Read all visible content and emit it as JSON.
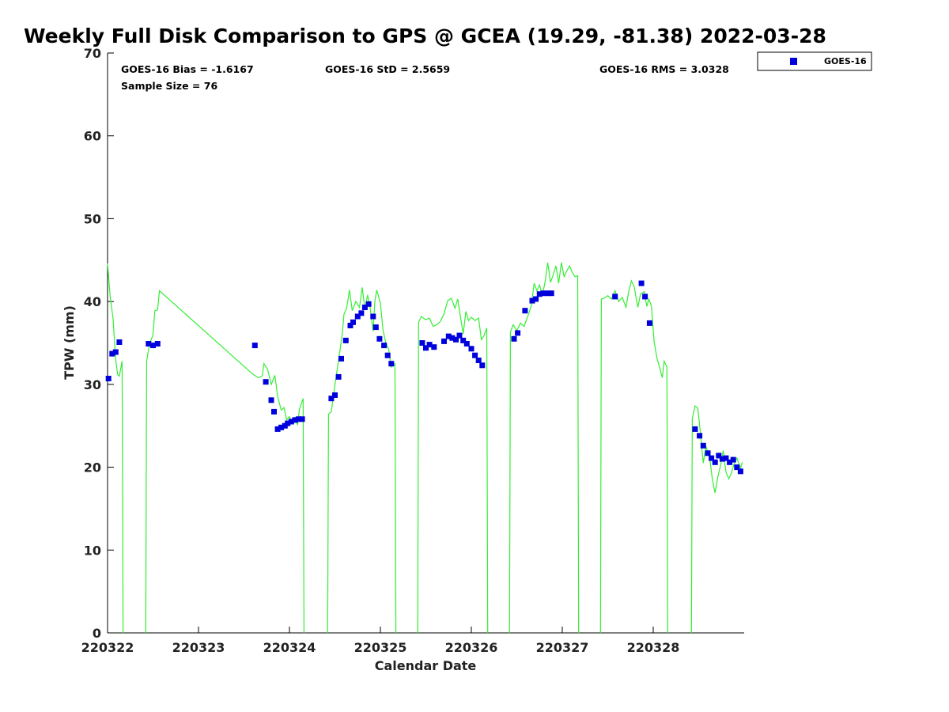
{
  "chart_data": {
    "type": "scatter",
    "title": "Weekly Full Disk Comparison to GPS @ GCEA (19.29, -81.38) 2022-03-28",
    "xlabel": "Calendar Date",
    "ylabel": "TPW (mm)",
    "xlim": [
      0,
      7
    ],
    "ylim": [
      0,
      70
    ],
    "x_unit": "days since 220322",
    "x_ticks": [
      0,
      1,
      2,
      3,
      4,
      5,
      6
    ],
    "x_tick_labels": [
      "220322",
      "220323",
      "220324",
      "220325",
      "220326",
      "220327",
      "220328"
    ],
    "y_ticks": [
      0,
      10,
      20,
      30,
      40,
      50,
      60,
      70
    ],
    "y_tick_labels": [
      "0",
      "10",
      "20",
      "30",
      "40",
      "50",
      "60",
      "70"
    ],
    "stats": {
      "bias": "GOES-16 Bias = -1.6167",
      "std": "GOES-16 StD = 2.5659",
      "rms": "GOES-16 RMS = 3.0328",
      "sample": "Sample Size = 76"
    },
    "legend": {
      "position": "top-right",
      "label": "GOES-16"
    },
    "colors": {
      "goes": "#0000dd",
      "gps": "#33ee33"
    },
    "series": [
      {
        "name": "GOES-16",
        "kind": "markers",
        "points": [
          [
            0.01,
            30.7
          ],
          [
            0.05,
            33.7
          ],
          [
            0.09,
            33.9
          ],
          [
            0.13,
            35.1
          ],
          [
            0.45,
            34.9
          ],
          [
            0.5,
            34.7
          ],
          [
            0.55,
            34.9
          ],
          [
            1.62,
            34.7
          ],
          [
            1.74,
            30.3
          ],
          [
            1.8,
            28.1
          ],
          [
            1.83,
            26.7
          ],
          [
            1.87,
            24.6
          ],
          [
            1.91,
            24.8
          ],
          [
            1.95,
            25.0
          ],
          [
            1.98,
            25.3
          ],
          [
            2.02,
            25.5
          ],
          [
            2.06,
            25.7
          ],
          [
            2.1,
            25.8
          ],
          [
            2.14,
            25.8
          ],
          [
            2.46,
            28.3
          ],
          [
            2.5,
            28.7
          ],
          [
            2.54,
            30.9
          ],
          [
            2.57,
            33.1
          ],
          [
            2.62,
            35.3
          ],
          [
            2.67,
            37.1
          ],
          [
            2.7,
            37.5
          ],
          [
            2.75,
            38.2
          ],
          [
            2.79,
            38.6
          ],
          [
            2.83,
            39.3
          ],
          [
            2.87,
            39.7
          ],
          [
            2.92,
            38.2
          ],
          [
            2.95,
            36.9
          ],
          [
            2.99,
            35.5
          ],
          [
            3.04,
            34.7
          ],
          [
            3.08,
            33.5
          ],
          [
            3.12,
            32.5
          ],
          [
            3.46,
            35.0
          ],
          [
            3.5,
            34.4
          ],
          [
            3.54,
            34.8
          ],
          [
            3.59,
            34.5
          ],
          [
            3.7,
            35.2
          ],
          [
            3.75,
            35.8
          ],
          [
            3.79,
            35.6
          ],
          [
            3.83,
            35.4
          ],
          [
            3.87,
            35.9
          ],
          [
            3.91,
            35.3
          ],
          [
            3.95,
            34.9
          ],
          [
            4.0,
            34.3
          ],
          [
            4.04,
            33.5
          ],
          [
            4.08,
            32.9
          ],
          [
            4.12,
            32.3
          ],
          [
            4.47,
            35.5
          ],
          [
            4.51,
            36.2
          ],
          [
            4.59,
            38.9
          ],
          [
            4.67,
            40.1
          ],
          [
            4.71,
            40.3
          ],
          [
            4.75,
            40.9
          ],
          [
            4.79,
            41.0
          ],
          [
            4.84,
            41.0
          ],
          [
            4.88,
            41.0
          ],
          [
            5.58,
            40.6
          ],
          [
            5.87,
            42.2
          ],
          [
            5.91,
            40.6
          ],
          [
            5.96,
            37.4
          ],
          [
            6.46,
            24.6
          ],
          [
            6.51,
            23.8
          ],
          [
            6.55,
            22.6
          ],
          [
            6.6,
            21.7
          ],
          [
            6.64,
            21.1
          ],
          [
            6.68,
            20.6
          ],
          [
            6.72,
            21.4
          ],
          [
            6.76,
            21.0
          ],
          [
            6.8,
            21.1
          ],
          [
            6.84,
            20.6
          ],
          [
            6.88,
            20.9
          ],
          [
            6.92,
            20.0
          ],
          [
            6.96,
            19.5
          ]
        ]
      },
      {
        "name": "GPS",
        "kind": "line",
        "segments": [
          [
            [
              0.0,
              44.6
            ],
            [
              0.03,
              40.5
            ],
            [
              0.06,
              38.0
            ],
            [
              0.09,
              33.0
            ],
            [
              0.11,
              31.2
            ],
            [
              0.13,
              31.0
            ],
            [
              0.16,
              32.8
            ],
            [
              0.17,
              0.0
            ]
          ],
          [
            [
              0.42,
              0.0
            ],
            [
              0.43,
              32.8
            ],
            [
              0.46,
              34.8
            ],
            [
              0.5,
              36.0
            ],
            [
              0.52,
              38.9
            ],
            [
              0.55,
              39.0
            ],
            [
              0.57,
              41.3
            ],
            [
              1.6,
              31.2
            ],
            [
              1.66,
              30.8
            ],
            [
              1.7,
              31.0
            ],
            [
              1.72,
              32.5
            ],
            [
              1.76,
              31.8
            ],
            [
              1.8,
              30.0
            ],
            [
              1.84,
              31.1
            ],
            [
              1.87,
              28.5
            ],
            [
              1.91,
              26.9
            ],
            [
              1.94,
              27.2
            ],
            [
              1.97,
              25.7
            ],
            [
              2.0,
              26.1
            ],
            [
              2.03,
              25.3
            ],
            [
              2.06,
              26.0
            ],
            [
              2.09,
              25.1
            ],
            [
              2.11,
              27.0
            ],
            [
              2.15,
              28.3
            ],
            [
              2.16,
              0.0
            ]
          ],
          [
            [
              2.42,
              0.0
            ],
            [
              2.43,
              26.4
            ],
            [
              2.46,
              26.7
            ],
            [
              2.5,
              29.9
            ],
            [
              2.54,
              32.9
            ],
            [
              2.58,
              36.0
            ],
            [
              2.6,
              38.5
            ],
            [
              2.63,
              39.2
            ],
            [
              2.66,
              41.4
            ],
            [
              2.69,
              38.9
            ],
            [
              2.73,
              40.0
            ],
            [
              2.77,
              39.3
            ],
            [
              2.8,
              41.7
            ],
            [
              2.83,
              39.1
            ],
            [
              2.86,
              40.8
            ],
            [
              2.89,
              39.0
            ],
            [
              2.92,
              36.4
            ],
            [
              2.94,
              40.1
            ],
            [
              2.96,
              41.4
            ],
            [
              3.0,
              39.8
            ],
            [
              3.03,
              36.5
            ],
            [
              3.06,
              35.0
            ],
            [
              3.09,
              34.3
            ],
            [
              3.12,
              32.1
            ],
            [
              3.16,
              32.5
            ],
            [
              3.17,
              0.0
            ]
          ],
          [
            [
              3.41,
              0.0
            ],
            [
              3.42,
              37.5
            ],
            [
              3.45,
              38.2
            ],
            [
              3.5,
              37.8
            ],
            [
              3.54,
              38.0
            ],
            [
              3.58,
              37.0
            ],
            [
              3.62,
              37.2
            ],
            [
              3.66,
              37.6
            ],
            [
              3.7,
              38.5
            ],
            [
              3.74,
              40.1
            ],
            [
              3.78,
              40.4
            ],
            [
              3.82,
              39.2
            ],
            [
              3.85,
              40.3
            ],
            [
              3.88,
              38.2
            ],
            [
              3.91,
              36.1
            ],
            [
              3.94,
              38.8
            ],
            [
              3.97,
              37.7
            ],
            [
              4.0,
              38.1
            ],
            [
              4.04,
              37.7
            ],
            [
              4.08,
              38.0
            ],
            [
              4.11,
              35.4
            ],
            [
              4.14,
              35.9
            ],
            [
              4.17,
              36.8
            ],
            [
              4.18,
              0.0
            ]
          ],
          [
            [
              4.42,
              0.0
            ],
            [
              4.43,
              36.3
            ],
            [
              4.46,
              37.2
            ],
            [
              4.5,
              36.5
            ],
            [
              4.54,
              37.4
            ],
            [
              4.58,
              37.0
            ],
            [
              4.62,
              38.2
            ],
            [
              4.66,
              39.5
            ],
            [
              4.69,
              42.2
            ],
            [
              4.72,
              41.3
            ],
            [
              4.75,
              42.0
            ],
            [
              4.78,
              40.7
            ],
            [
              4.81,
              42.3
            ],
            [
              4.84,
              44.7
            ],
            [
              4.87,
              42.3
            ],
            [
              4.9,
              43.2
            ],
            [
              4.93,
              44.3
            ],
            [
              4.96,
              42.2
            ],
            [
              4.99,
              44.7
            ],
            [
              5.02,
              43.0
            ],
            [
              5.05,
              43.7
            ],
            [
              5.08,
              44.3
            ],
            [
              5.11,
              43.5
            ],
            [
              5.14,
              43.0
            ],
            [
              5.17,
              43.1
            ],
            [
              5.18,
              0.0
            ]
          ],
          [
            [
              5.42,
              0.0
            ],
            [
              5.43,
              40.3
            ],
            [
              5.46,
              40.4
            ],
            [
              5.5,
              40.7
            ],
            [
              5.54,
              40.3
            ],
            [
              5.58,
              41.3
            ],
            [
              5.62,
              40.0
            ],
            [
              5.66,
              40.5
            ],
            [
              5.7,
              39.3
            ],
            [
              5.73,
              41.2
            ],
            [
              5.76,
              42.5
            ],
            [
              5.79,
              41.8
            ],
            [
              5.83,
              39.3
            ],
            [
              5.86,
              40.9
            ],
            [
              5.9,
              41.2
            ],
            [
              5.93,
              39.4
            ],
            [
              5.95,
              40.3
            ],
            [
              5.98,
              39.5
            ],
            [
              6.01,
              35.2
            ],
            [
              6.04,
              33.2
            ],
            [
              6.07,
              32.0
            ],
            [
              6.1,
              30.8
            ],
            [
              6.12,
              32.8
            ],
            [
              6.15,
              32.1
            ],
            [
              6.16,
              0.0
            ]
          ],
          [
            [
              6.42,
              0.0
            ],
            [
              6.43,
              25.9
            ],
            [
              6.46,
              27.4
            ],
            [
              6.49,
              27.1
            ],
            [
              6.52,
              24.0
            ],
            [
              6.55,
              20.5
            ],
            [
              6.58,
              22.5
            ],
            [
              6.62,
              21.2
            ],
            [
              6.65,
              18.5
            ],
            [
              6.68,
              16.9
            ],
            [
              6.71,
              18.8
            ],
            [
              6.74,
              20.2
            ],
            [
              6.77,
              22.0
            ],
            [
              6.8,
              19.4
            ],
            [
              6.83,
              18.6
            ],
            [
              6.86,
              19.3
            ],
            [
              6.89,
              20.4
            ],
            [
              6.92,
              21.1
            ],
            [
              6.96,
              19.9
            ],
            [
              6.98,
              20.6
            ]
          ]
        ]
      }
    ]
  }
}
